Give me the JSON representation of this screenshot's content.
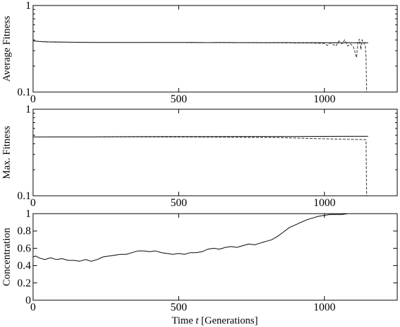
{
  "chart_data": [
    {
      "type": "line",
      "ylabel": "Average Fitness",
      "yscale": "log",
      "ylim": [
        0.1,
        1
      ],
      "y_ticks": [
        0.1,
        1
      ],
      "y_tick_labels": [
        "0.1",
        "1"
      ],
      "xlim": [
        0,
        1250
      ],
      "x_ticks": [
        0,
        500,
        1000
      ],
      "x_tick_labels": [
        "0",
        "500",
        "1000"
      ],
      "series": [
        {
          "style": "solid",
          "x": [
            0,
            20,
            50,
            100,
            150,
            200,
            250,
            300,
            350,
            400,
            450,
            500,
            550,
            600,
            650,
            700,
            750,
            800,
            850,
            900,
            950,
            1000,
            1020,
            1040,
            1060,
            1080,
            1100,
            1120,
            1130,
            1140,
            1150
          ],
          "y": [
            0.39,
            0.385,
            0.38,
            0.378,
            0.376,
            0.375,
            0.375,
            0.374,
            0.374,
            0.375,
            0.374,
            0.375,
            0.374,
            0.373,
            0.374,
            0.373,
            0.373,
            0.372,
            0.373,
            0.372,
            0.372,
            0.372,
            0.371,
            0.372,
            0.371,
            0.372,
            0.371,
            0.372,
            0.371,
            0.372,
            0.371
          ]
        },
        {
          "style": "dashed",
          "x": [
            0,
            20,
            50,
            100,
            150,
            200,
            250,
            300,
            350,
            400,
            450,
            500,
            550,
            600,
            650,
            700,
            750,
            800,
            850,
            900,
            950,
            1000,
            1010,
            1020,
            1040,
            1050,
            1060,
            1070,
            1080,
            1090,
            1100,
            1105,
            1110,
            1115,
            1120,
            1125,
            1130,
            1135,
            1140,
            1143,
            1145
          ],
          "y": [
            0.39,
            0.384,
            0.378,
            0.376,
            0.375,
            0.374,
            0.374,
            0.373,
            0.373,
            0.374,
            0.373,
            0.373,
            0.372,
            0.372,
            0.372,
            0.371,
            0.371,
            0.37,
            0.37,
            0.369,
            0.369,
            0.365,
            0.345,
            0.37,
            0.34,
            0.39,
            0.36,
            0.4,
            0.34,
            0.36,
            0.33,
            0.29,
            0.25,
            0.37,
            0.41,
            0.31,
            0.4,
            0.37,
            0.35,
            0.25,
            0.1
          ]
        }
      ]
    },
    {
      "type": "line",
      "ylabel": "Max. Fitness",
      "yscale": "log",
      "ylim": [
        0.1,
        1
      ],
      "y_ticks": [
        0.1,
        1
      ],
      "y_tick_labels": [
        "0.1",
        "1"
      ],
      "xlim": [
        0,
        1250
      ],
      "x_ticks": [
        0,
        500,
        1000
      ],
      "x_tick_labels": [
        "0",
        "500",
        "1000"
      ],
      "series": [
        {
          "style": "solid",
          "x": [
            0,
            100,
            200,
            300,
            400,
            500,
            600,
            700,
            800,
            900,
            1000,
            1100,
            1150
          ],
          "y": [
            0.478,
            0.479,
            0.479,
            0.481,
            0.482,
            0.482,
            0.482,
            0.483,
            0.484,
            0.484,
            0.486,
            0.487,
            0.487
          ]
        },
        {
          "style": "dashed",
          "x": [
            0,
            100,
            200,
            300,
            400,
            500,
            600,
            700,
            800,
            850,
            900,
            950,
            1000,
            1050,
            1100,
            1140,
            1143,
            1145
          ],
          "y": [
            0.478,
            0.478,
            0.477,
            0.478,
            0.478,
            0.477,
            0.476,
            0.474,
            0.472,
            0.47,
            0.465,
            0.46,
            0.456,
            0.452,
            0.448,
            0.446,
            0.44,
            0.1
          ]
        }
      ]
    },
    {
      "type": "line",
      "ylabel": "Concentration",
      "xlabel_parts": [
        "Time ",
        "t",
        " [Generations]"
      ],
      "ylim": [
        0,
        1
      ],
      "y_ticks": [
        0,
        0.2,
        0.4,
        0.6,
        0.8,
        1
      ],
      "y_tick_labels": [
        "0",
        "0.2",
        "0.4",
        "0.6",
        "0.8",
        "1"
      ],
      "xlim": [
        0,
        1250
      ],
      "x_ticks": [
        0,
        500,
        1000
      ],
      "x_tick_labels": [
        "0",
        "500",
        "1000"
      ],
      "series": [
        {
          "style": "solid",
          "x": [
            0,
            10,
            20,
            40,
            60,
            80,
            100,
            120,
            140,
            160,
            180,
            200,
            220,
            240,
            260,
            280,
            300,
            320,
            340,
            360,
            380,
            400,
            420,
            440,
            460,
            480,
            500,
            520,
            540,
            560,
            580,
            600,
            620,
            640,
            660,
            680,
            700,
            720,
            740,
            760,
            780,
            800,
            820,
            840,
            860,
            880,
            900,
            920,
            940,
            960,
            980,
            1000,
            1020,
            1040,
            1060,
            1080,
            1100,
            1120,
            1150
          ],
          "y": [
            0.5,
            0.51,
            0.49,
            0.47,
            0.49,
            0.47,
            0.48,
            0.46,
            0.46,
            0.45,
            0.47,
            0.45,
            0.47,
            0.5,
            0.51,
            0.52,
            0.53,
            0.53,
            0.55,
            0.57,
            0.57,
            0.56,
            0.57,
            0.55,
            0.54,
            0.53,
            0.54,
            0.53,
            0.55,
            0.55,
            0.56,
            0.59,
            0.6,
            0.59,
            0.61,
            0.62,
            0.61,
            0.63,
            0.65,
            0.64,
            0.66,
            0.68,
            0.7,
            0.74,
            0.79,
            0.84,
            0.87,
            0.9,
            0.93,
            0.95,
            0.97,
            0.98,
            0.99,
            0.99,
            0.99,
            1.0,
            1.0,
            1.0,
            1.0
          ]
        }
      ]
    }
  ]
}
